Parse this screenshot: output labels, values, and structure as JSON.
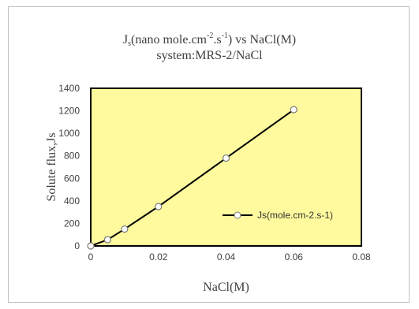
{
  "title": {
    "line1_pre": "J",
    "line1_sub": "s",
    "line1_mid": "(nano mole.cm",
    "line1_sup1": "-2",
    "line1_dot": ".s",
    "line1_sup2": "-1",
    "line1_post": ") vs NaCl(M)",
    "line2": "system:MRS-2/NaCl"
  },
  "chart_data": {
    "type": "line",
    "title": "Js(nano mole.cm-2.s-1) vs NaCl(M) system:MRS-2/NaCl",
    "xlabel": "NaCl(M)",
    "ylabel": "Solute flux,Js",
    "xlim": [
      0,
      0.08
    ],
    "ylim": [
      0,
      1400
    ],
    "x_ticks": [
      0,
      0.02,
      0.04,
      0.06,
      0.08
    ],
    "x_tick_labels": [
      "0",
      "0.02",
      "0.04",
      "0.06",
      "0.08"
    ],
    "y_ticks": [
      0,
      200,
      400,
      600,
      800,
      1000,
      1200,
      1400
    ],
    "y_tick_labels": [
      "0",
      "200",
      "400",
      "600",
      "800",
      "1000",
      "1200",
      "1400"
    ],
    "legend_position": "right",
    "plot_background": "#fffa9e",
    "line_color": "#000000",
    "marker": "open-circle",
    "series": [
      {
        "name": "Js(mole.cm-2.s-1)",
        "x": [
          0,
          0.005,
          0.01,
          0.02,
          0.04,
          0.06
        ],
        "y": [
          0,
          55,
          150,
          350,
          780,
          1210
        ]
      }
    ]
  }
}
